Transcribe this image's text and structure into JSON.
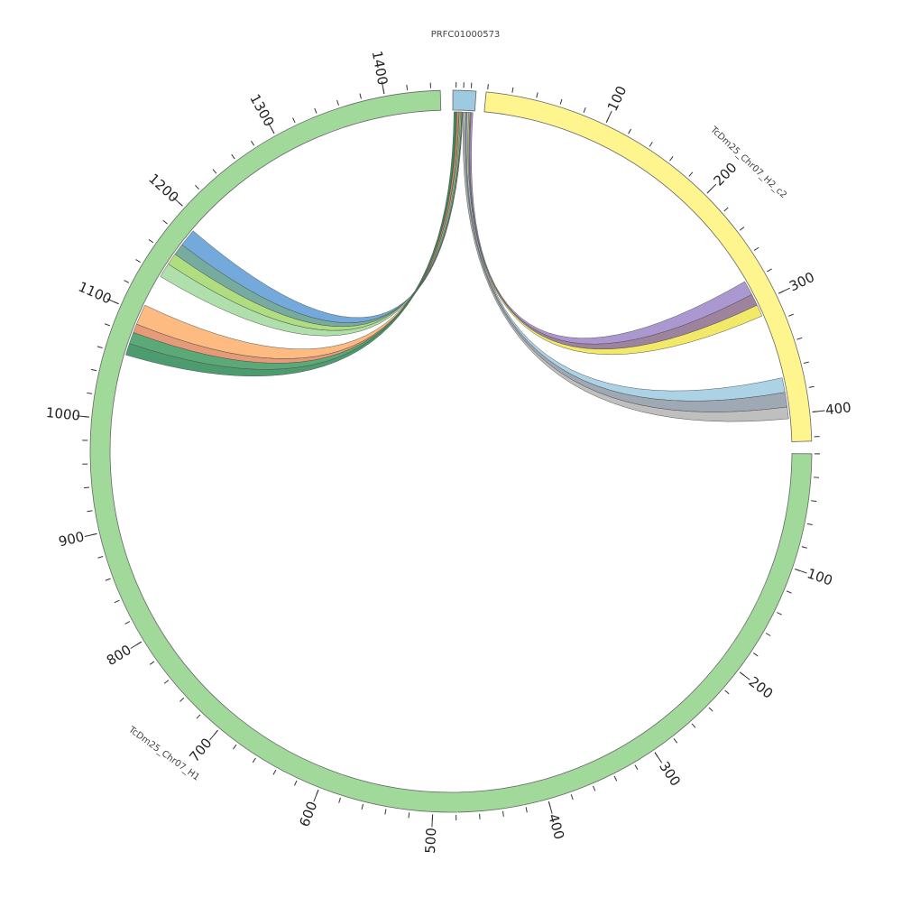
{
  "segments": [
    {
      "id": "prfc",
      "name": "PRFC01000573",
      "color": "#9ecae1",
      "ticks": []
    },
    {
      "id": "h2c2",
      "name": "TcDm25_Chr07_H2_c2",
      "color": "#fff58e",
      "ticks": [
        "100",
        "200",
        "300",
        "400"
      ]
    },
    {
      "id": "h1",
      "name": "TcDm25_Chr07_H1",
      "color": "#a1d99b",
      "ticks": [
        "100",
        "200",
        "300",
        "400",
        "500",
        "600",
        "700",
        "800",
        "900",
        "1000",
        "1100",
        "1200",
        "1300",
        "1400"
      ]
    }
  ],
  "links": [
    {
      "from": "prfc",
      "to": "h2c2",
      "color": "#9e86c8"
    },
    {
      "from": "prfc",
      "to": "h2c2",
      "color": "#8c6d8c"
    },
    {
      "from": "prfc",
      "to": "h2c2",
      "color": "#f1e54f"
    },
    {
      "from": "prfc",
      "to": "h2c2",
      "color": "#9ecae1"
    },
    {
      "from": "prfc",
      "to": "h2c2",
      "color": "#8e9aa6"
    },
    {
      "from": "prfc",
      "to": "h2c2",
      "color": "#b4b4b4"
    },
    {
      "from": "prfc",
      "to": "h1",
      "color": "#5b9bd5"
    },
    {
      "from": "prfc",
      "to": "h1",
      "color": "#5e9c8e"
    },
    {
      "from": "prfc",
      "to": "h1",
      "color": "#a1d76a"
    },
    {
      "from": "prfc",
      "to": "h1",
      "color": "#a1d99b"
    },
    {
      "from": "prfc",
      "to": "h1",
      "color": "#fdae6b"
    },
    {
      "from": "prfc",
      "to": "h1",
      "color": "#e08a60"
    },
    {
      "from": "prfc",
      "to": "h1",
      "color": "#3f9a60"
    },
    {
      "from": "prfc",
      "to": "h1",
      "color": "#2e8b57"
    }
  ]
}
